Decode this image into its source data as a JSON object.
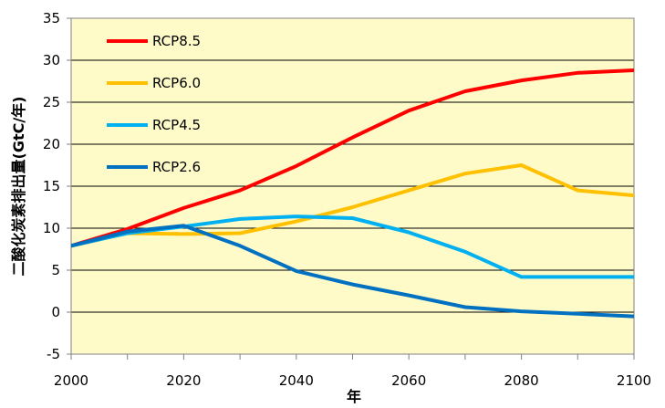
{
  "chart_data": {
    "type": "line",
    "title": "",
    "xlabel": "年",
    "ylabel": "二酸化炭素排出量(GtC/年)",
    "x": [
      2000,
      2010,
      2020,
      2030,
      2040,
      2050,
      2060,
      2070,
      2080,
      2090,
      2100
    ],
    "xlim": [
      2000,
      2100
    ],
    "ylim": [
      -5,
      35
    ],
    "xticks": [
      2000,
      2020,
      2040,
      2060,
      2080,
      2100
    ],
    "yticks": [
      -5,
      0,
      5,
      10,
      15,
      20,
      25,
      30,
      35
    ],
    "grid": true,
    "legend": "top-left",
    "plot_background": "#FFFBC9",
    "series": [
      {
        "name": "RCP8.5",
        "color": "#FF0000",
        "values": [
          7.9,
          9.9,
          12.4,
          14.5,
          17.4,
          20.8,
          24.0,
          26.3,
          27.6,
          28.5,
          28.8
        ]
      },
      {
        "name": "RCP6.0",
        "color": "#FFC000",
        "values": [
          7.9,
          9.4,
          9.3,
          9.4,
          10.8,
          12.5,
          14.5,
          16.5,
          17.5,
          14.5,
          13.9
        ]
      },
      {
        "name": "RCP4.5",
        "color": "#00B0F0",
        "values": [
          7.9,
          9.4,
          10.2,
          11.1,
          11.4,
          11.2,
          9.5,
          7.2,
          4.2,
          4.2,
          4.2
        ]
      },
      {
        "name": "RCP2.6",
        "color": "#0070C0",
        "values": [
          7.9,
          9.6,
          10.3,
          7.9,
          4.9,
          3.3,
          2.0,
          0.6,
          0.1,
          -0.2,
          -0.5
        ]
      }
    ]
  }
}
